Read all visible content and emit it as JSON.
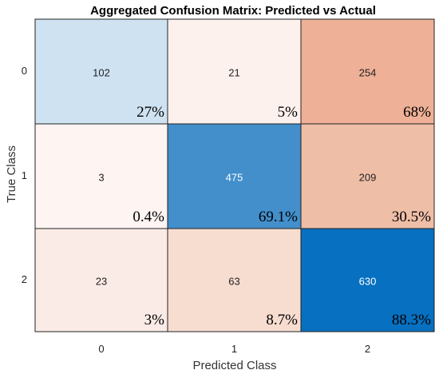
{
  "chart_data": {
    "type": "heatmap",
    "title": "Aggregated Confusion Matrix: Predicted vs Actual",
    "xlabel": "Predicted Class",
    "ylabel": "True Class",
    "x_categories": [
      "0",
      "1",
      "2"
    ],
    "y_categories": [
      "0",
      "1",
      "2"
    ],
    "cells": [
      [
        {
          "count": "102",
          "percent": "27%",
          "color": "#cfe2f2",
          "text_color": "#222222"
        },
        {
          "count": "21",
          "percent": "5%",
          "color": "#fdf1ee",
          "text_color": "#222222"
        },
        {
          "count": "254",
          "percent": "68%",
          "color": "#eeb096",
          "text_color": "#222222"
        }
      ],
      [
        {
          "count": "3",
          "percent": "0.4%",
          "color": "#fef4f2",
          "text_color": "#222222"
        },
        {
          "count": "475",
          "percent": "69.1%",
          "color": "#428fcb",
          "text_color": "#ffffff"
        },
        {
          "count": "209",
          "percent": "30.5%",
          "color": "#efbea7",
          "text_color": "#222222"
        }
      ],
      [
        {
          "count": "23",
          "percent": "3%",
          "color": "#fbebe6",
          "text_color": "#222222"
        },
        {
          "count": "63",
          "percent": "8.7%",
          "color": "#f7dcd0",
          "text_color": "#222222"
        },
        {
          "count": "630",
          "percent": "88.3%",
          "color": "#0770c0",
          "text_color": "#ffffff"
        }
      ]
    ]
  }
}
